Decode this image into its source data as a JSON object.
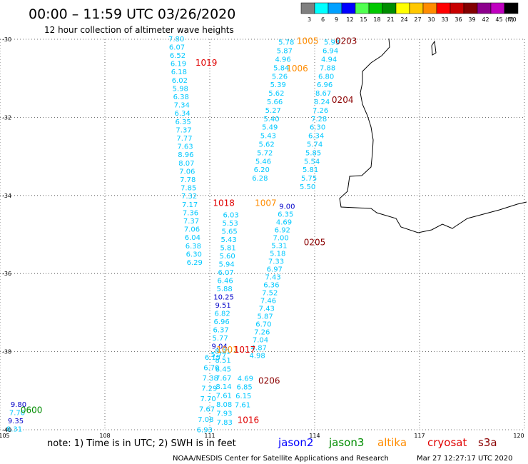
{
  "header": {
    "title": "00:00 – 11:59 UTC 03/26/2020",
    "subtitle": "12 hour collection of altimeter wave heights"
  },
  "legend": {
    "unit": "(ft)",
    "bins": [
      {
        "label": "3",
        "color": "#7f7f7f"
      },
      {
        "label": "6",
        "color": "#00ffff"
      },
      {
        "label": "9",
        "color": "#00a0ff"
      },
      {
        "label": "12",
        "color": "#0000ff"
      },
      {
        "label": "15",
        "color": "#50ff50"
      },
      {
        "label": "18",
        "color": "#00c800"
      },
      {
        "label": "21",
        "color": "#008c00"
      },
      {
        "label": "24",
        "color": "#ffff00"
      },
      {
        "label": "27",
        "color": "#ffc800"
      },
      {
        "label": "30",
        "color": "#ff8c00"
      },
      {
        "label": "33",
        "color": "#ff0000"
      },
      {
        "label": "36",
        "color": "#c80000"
      },
      {
        "label": "39",
        "color": "#820000"
      },
      {
        "label": "42",
        "color": "#8c008c"
      },
      {
        "label": "45",
        "color": "#c000c0"
      },
      {
        "label": "70",
        "color": "#000000"
      }
    ]
  },
  "axes": {
    "lon_ticks": [
      "105",
      "108",
      "111",
      "114",
      "117",
      "120"
    ],
    "lat_ticks": [
      "-30",
      "-32",
      "-34",
      "-36",
      "-38",
      "-40"
    ]
  },
  "colors": {
    "swh": "#00c8ff",
    "swh_high": "#0000c8",
    "jason2": "#0000ff",
    "jason3": "#008c00",
    "altika": "#ff8c00",
    "cryosat": "#e00000",
    "s3a": "#8b0000",
    "coast": "#000000",
    "grid": "#444444"
  },
  "tracks": [
    {
      "sat": "s3a",
      "label": "0203",
      "lon": 114.9,
      "lat": -30.05,
      "values": [
        "5.93",
        "6.94",
        "4.94",
        "7.88",
        "6.80",
        "6.96",
        "8.67",
        "8.24",
        "7.26",
        "7.28",
        "6.30",
        "6.34",
        "5.74",
        "5.85",
        "5.54",
        "5.81",
        "5.75",
        "5.50"
      ]
    },
    {
      "sat": "s3a",
      "label": "0204",
      "lon": 114.8,
      "lat": -31.55,
      "values": []
    },
    {
      "sat": "altika",
      "label": "1005",
      "lon": 113.8,
      "lat": -30.05,
      "values": [
        "5.78",
        "5.87",
        "4.96",
        "5.84",
        "5.26",
        "5.39",
        "5.62",
        "5.66",
        "5.27",
        "5.40",
        "5.49",
        "5.43",
        "5.62",
        "5.72",
        "5.46",
        "6.20",
        "6.28"
      ]
    },
    {
      "sat": "altika",
      "label": "1006",
      "lon": 113.5,
      "lat": -30.75,
      "values": []
    },
    {
      "sat": "cryosat",
      "label": "1019",
      "lon": 110.9,
      "lat": -30.6,
      "values": [
        "7.80",
        "6.07",
        "6.52",
        "6.19",
        "6.18",
        "6.02",
        "5.98",
        "6.38",
        "7.34",
        "6.34",
        "6.35",
        "7.37",
        "7.77",
        "7.63",
        "8.96",
        "8.07",
        "7.06",
        "7.78",
        "7.85",
        "7.32",
        "7.17",
        "7.36",
        "7.37",
        "7.06",
        "6.04",
        "6.38",
        "6.30",
        "6.29"
      ]
    },
    {
      "sat": "cryosat",
      "label": "1018",
      "lon": 111.4,
      "lat": -34.2,
      "values": [
        "6.03",
        "5.53",
        "5.65",
        "5.43",
        "5.81",
        "5.60",
        "5.94",
        "6.07",
        "6.46",
        "5.88",
        "10.25",
        "9.51",
        "6.82",
        "6.96",
        "6.37",
        "5.77",
        "9.04",
        "5.77"
      ]
    },
    {
      "sat": "altika",
      "label": "1007",
      "lon": 112.6,
      "lat": -34.2,
      "values": [
        "9.00",
        "6.35",
        "4.69",
        "6.92",
        "7.00",
        "5.31",
        "5.18",
        "7.33",
        "6.97",
        "7.43",
        "6.36",
        "7.52",
        "7.46",
        "7.43",
        "5.87",
        "6.70",
        "7.26",
        "7.04",
        "4.87",
        "4.98"
      ]
    },
    {
      "sat": "s3a",
      "label": "0205",
      "lon": 114.0,
      "lat": -35.2,
      "values": []
    },
    {
      "sat": "altika",
      "label": "1001",
      "lon": 111.5,
      "lat": -37.95,
      "values": []
    },
    {
      "sat": "cryosat",
      "label": "1017",
      "lon": 112.0,
      "lat": -37.95,
      "values": [
        "6.15",
        "6.70",
        "7.38",
        "7.29",
        "7.70",
        "7.67",
        "7.08",
        "6.93"
      ]
    },
    {
      "sat": "s3a",
      "label": "0206",
      "lon": 112.7,
      "lat": -38.75,
      "values": [
        "8.21",
        "8.51",
        "8.45",
        "7.67",
        "8.14",
        "7.61",
        "8.08",
        "7.93",
        "7.83"
      ]
    },
    {
      "sat": "cryosat",
      "label": "1016",
      "lon": 112.1,
      "lat": -39.75,
      "values": [
        "4.69",
        "6.85",
        "6.15",
        "7.61"
      ]
    },
    {
      "sat": "jason3",
      "label": "0600",
      "lon": 105.9,
      "lat": -39.5,
      "values": [
        "9.80",
        "7.70",
        "9.35",
        "8.31"
      ]
    }
  ],
  "footer": {
    "note": "note:  1) Time is in UTC;  2) SWH is in feet",
    "satellites": [
      {
        "key": "jason2",
        "label": "jason2"
      },
      {
        "key": "jason3",
        "label": "jason3"
      },
      {
        "key": "altika",
        "label": "altika"
      },
      {
        "key": "cryosat",
        "label": "cryosat"
      },
      {
        "key": "s3a",
        "label": "s3a"
      }
    ],
    "credit": "NOAA/NESDIS Center for Satellite Applications and Research",
    "timestamp": "Mar 27 12:27:17 UTC 2020"
  }
}
